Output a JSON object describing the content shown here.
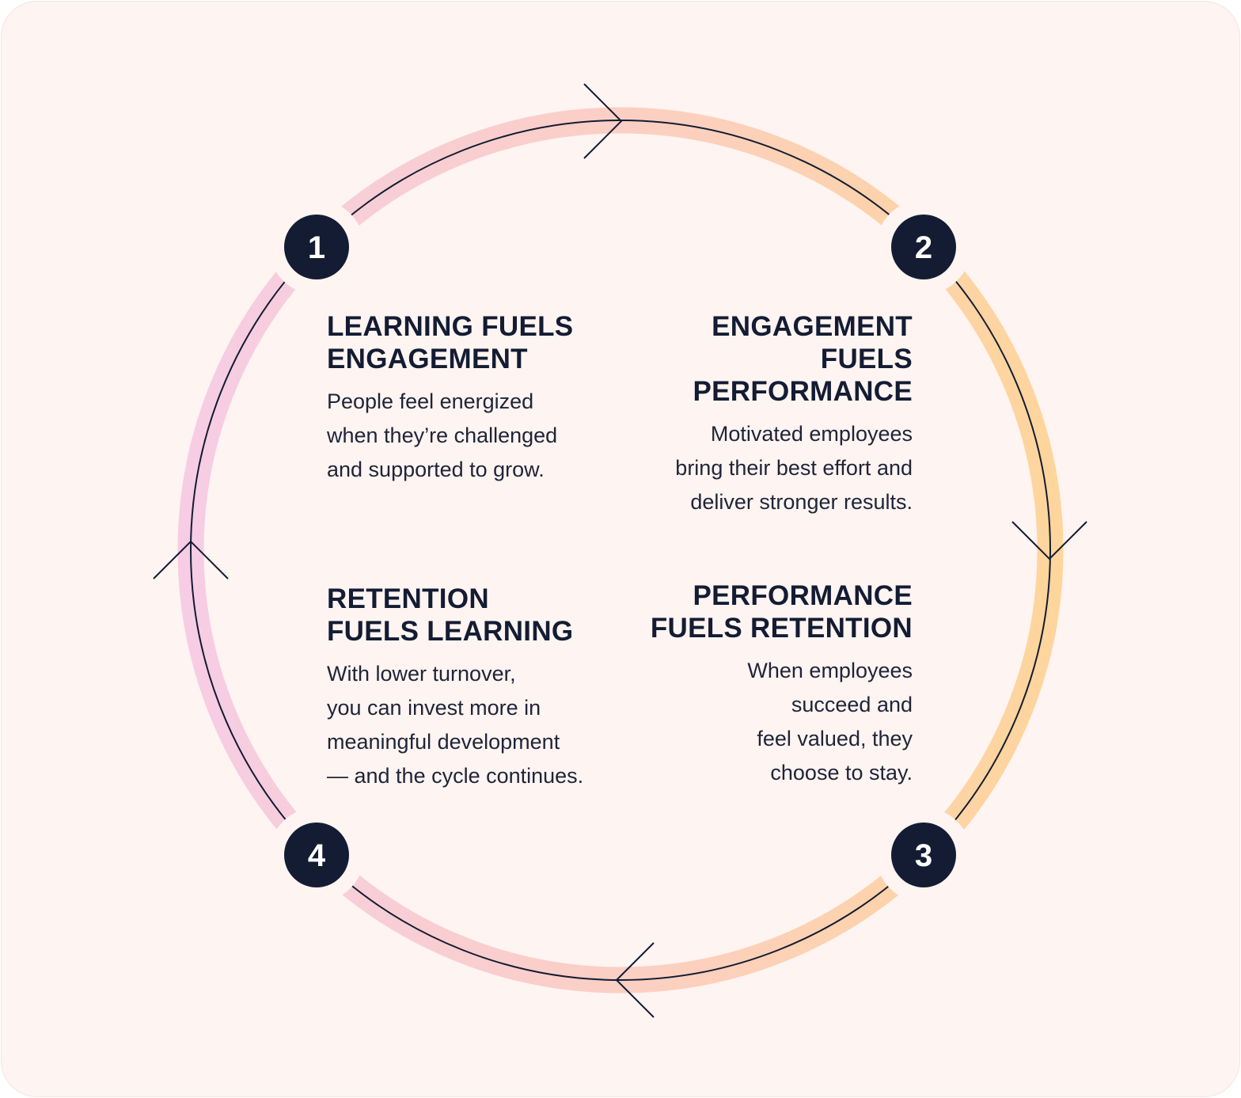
{
  "colors": {
    "background": "#fef4f1",
    "navy": "#131c33",
    "ring_pink": "#f6cde4",
    "ring_peach": "#fbcfc4",
    "ring_orange": "#fed59c"
  },
  "steps": [
    {
      "number": "1",
      "heading": "LEARNING FUELS ENGAGEMENT",
      "body": "People feel energized\nwhen they’re challenged\nand supported to grow."
    },
    {
      "number": "2",
      "heading": "ENGAGEMENT FUELS PERFORMANCE",
      "body": "Motivated employees\nbring their best effort and\ndeliver stronger results."
    },
    {
      "number": "3",
      "heading": "PERFORMANCE FUELS RETENTION",
      "body": "When employees\nsucceed and\nfeel valued, they\nchoose to stay."
    },
    {
      "number": "4",
      "heading": "RETENTION FUELS LEARNING",
      "body": "With lower turnover,\nyou can invest more in\nmeaningful development\n— and the cycle continues."
    }
  ],
  "arrows": [
    "chevron-right",
    "chevron-down",
    "chevron-left",
    "chevron-up"
  ]
}
